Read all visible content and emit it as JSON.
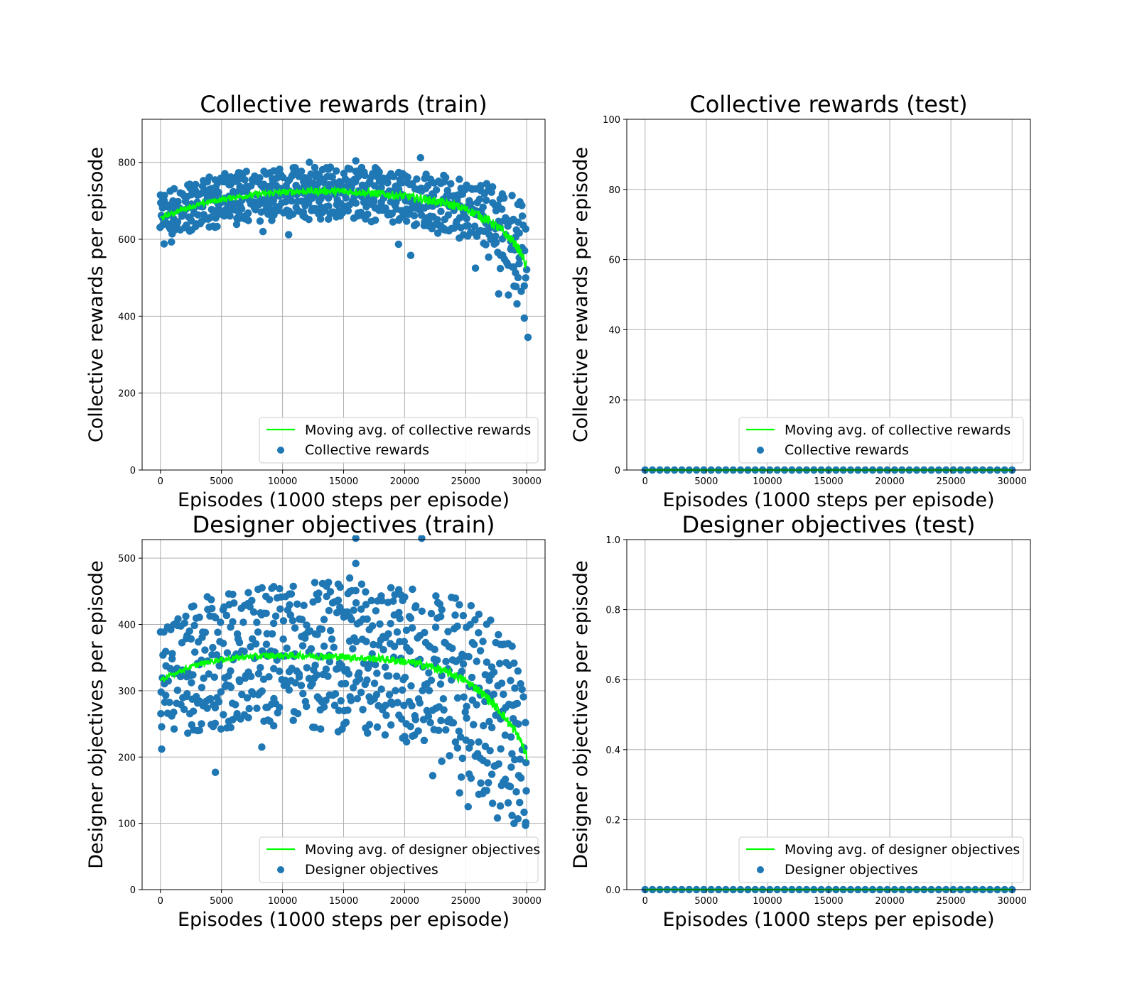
{
  "figure": {
    "background": "#ffffff"
  },
  "chart_data": [
    {
      "type": "scatter",
      "title": "Collective rewards (train)",
      "xlabel": "Episodes (1000 steps per episode)",
      "ylabel": "Collective rewards per episode",
      "xlim": [
        -1500,
        31500
      ],
      "ylim": [
        0,
        912
      ],
      "xticks": [
        0,
        5000,
        10000,
        15000,
        20000,
        25000,
        30000
      ],
      "yticks": [
        0,
        200,
        400,
        600,
        800
      ],
      "grid": true,
      "legend": {
        "placement": "lower-right",
        "entries": [
          "Moving avg. of collective rewards",
          "Collective rewards"
        ]
      },
      "series": [
        {
          "name": "Moving avg. of collective rewards",
          "kind": "line",
          "color": "#00ff00",
          "x": [
            0,
            1000,
            2000,
            3000,
            4000,
            5000,
            6000,
            7000,
            8000,
            9000,
            10000,
            11000,
            12000,
            13000,
            14000,
            15000,
            16000,
            17000,
            18000,
            19000,
            20000,
            21000,
            22000,
            23000,
            24000,
            25000,
            26000,
            27000,
            28000,
            29000,
            29500,
            30000
          ],
          "y": [
            655,
            668,
            680,
            689,
            697,
            703,
            709,
            713,
            717,
            720,
            722,
            724,
            725,
            725,
            725,
            724,
            723,
            721,
            718,
            715,
            712,
            707,
            702,
            695,
            688,
            678,
            664,
            646,
            622,
            590,
            565,
            530
          ]
        },
        {
          "name": "Collective rewards",
          "kind": "scatter",
          "color": "#1f77b4",
          "marker_size": 10.5,
          "x": [
            0,
            1000,
            2000,
            3000,
            4000,
            5000,
            6000,
            7000,
            8000,
            9000,
            10000,
            11000,
            12000,
            13000,
            14000,
            15000,
            16000,
            17000,
            18000,
            19000,
            20000,
            21000,
            22000,
            23000,
            24000,
            25000,
            26000,
            27000,
            28000,
            29000,
            29500,
            30000
          ],
          "y_low": [
            610,
            618,
            628,
            636,
            642,
            648,
            652,
            656,
            660,
            662,
            664,
            665,
            666,
            666,
            666,
            665,
            664,
            662,
            658,
            654,
            650,
            644,
            637,
            628,
            618,
            605,
            588,
            566,
            538,
            500,
            470,
            430
          ],
          "y_high": [
            705,
            720,
            732,
            742,
            750,
            756,
            762,
            766,
            770,
            773,
            775,
            777,
            778,
            778,
            778,
            777,
            776,
            774,
            772,
            770,
            767,
            764,
            760,
            755,
            750,
            744,
            738,
            728,
            714,
            690,
            672,
            650
          ],
          "outliers": [
            [
              300,
              588
            ],
            [
              900,
              593
            ],
            [
              4000,
              632
            ],
            [
              8400,
              620
            ],
            [
              10500,
              612
            ],
            [
              12200,
              800
            ],
            [
              16000,
              804
            ],
            [
              19500,
              587
            ],
            [
              20500,
              558
            ],
            [
              21300,
              812
            ],
            [
              25800,
              525
            ],
            [
              27700,
              458
            ],
            [
              28500,
              455
            ],
            [
              29200,
              432
            ],
            [
              29800,
              395
            ],
            [
              30100,
              345
            ]
          ]
        }
      ]
    },
    {
      "type": "scatter",
      "title": "Collective rewards (test)",
      "xlabel": "Episodes (1000 steps per episode)",
      "ylabel": "Collective rewards per episode",
      "xlim": [
        -1500,
        31500
      ],
      "ylim": [
        0,
        100
      ],
      "xticks": [
        0,
        5000,
        10000,
        15000,
        20000,
        25000,
        30000
      ],
      "yticks": [
        0,
        20,
        40,
        60,
        80,
        100
      ],
      "grid": true,
      "legend": {
        "placement": "lower-right",
        "entries": [
          "Moving avg. of collective rewards",
          "Collective rewards"
        ]
      },
      "series": [
        {
          "name": "Moving avg. of collective rewards",
          "kind": "line",
          "color": "#00ff00",
          "x": [
            0,
            30000
          ],
          "y": [
            0,
            0
          ]
        },
        {
          "name": "Collective rewards",
          "kind": "scatter",
          "color": "#1f77b4",
          "marker_size": 10.5,
          "x": [
            0,
            30000
          ],
          "y_low": [
            0,
            0
          ],
          "y_high": [
            0,
            0
          ],
          "outliers": []
        }
      ]
    },
    {
      "type": "scatter",
      "title": "Designer objectives (train)",
      "xlabel": "Episodes (1000 steps per episode)",
      "ylabel": "Designer objectives per episode",
      "xlim": [
        -1500,
        31500
      ],
      "ylim": [
        0,
        528
      ],
      "xticks": [
        0,
        5000,
        10000,
        15000,
        20000,
        25000,
        30000
      ],
      "yticks": [
        0,
        100,
        200,
        300,
        400,
        500
      ],
      "grid": true,
      "legend": {
        "placement": "lower-right",
        "entries": [
          "Moving avg. of designer objectives",
          "Designer objectives"
        ]
      },
      "series": [
        {
          "name": "Moving avg. of designer objectives",
          "kind": "line",
          "color": "#00ff00",
          "x": [
            0,
            1000,
            2000,
            3000,
            4000,
            5000,
            6000,
            7000,
            8000,
            9000,
            10000,
            11000,
            12000,
            13000,
            14000,
            15000,
            16000,
            17000,
            18000,
            19000,
            20000,
            21000,
            22000,
            23000,
            24000,
            25000,
            26000,
            27000,
            28000,
            29000,
            29500,
            30000
          ],
          "y": [
            315,
            325,
            333,
            339,
            344,
            347,
            349,
            351,
            352,
            353,
            353,
            353,
            353,
            352,
            352,
            351,
            350,
            349,
            348,
            346,
            344,
            341,
            337,
            331,
            324,
            315,
            302,
            285,
            265,
            240,
            225,
            200
          ]
        },
        {
          "name": "Designer objectives",
          "kind": "scatter",
          "color": "#1f77b4",
          "marker_size": 10.5,
          "x": [
            0,
            1000,
            2000,
            3000,
            4000,
            5000,
            6000,
            7000,
            8000,
            9000,
            10000,
            11000,
            12000,
            13000,
            14000,
            15000,
            16000,
            17000,
            18000,
            19000,
            20000,
            21000,
            22000,
            23000,
            24000,
            25000,
            26000,
            27000,
            28000,
            29000,
            29500,
            30000
          ],
          "y_low": [
            240,
            250,
            255,
            258,
            260,
            262,
            263,
            264,
            265,
            265,
            265,
            265,
            264,
            264,
            263,
            262,
            261,
            260,
            258,
            255,
            250,
            242,
            232,
            220,
            207,
            192,
            175,
            158,
            142,
            128,
            120,
            105
          ],
          "y_high": [
            390,
            400,
            410,
            418,
            425,
            430,
            434,
            437,
            439,
            441,
            442,
            443,
            443,
            443,
            443,
            443,
            442,
            441,
            440,
            438,
            436,
            433,
            429,
            424,
            418,
            410,
            400,
            385,
            365,
            340,
            320,
            300
          ],
          "outliers": [
            [
              100,
              212
            ],
            [
              4500,
              177
            ],
            [
              8300,
              215
            ],
            [
              15500,
              470
            ],
            [
              16000,
              492
            ],
            [
              16000,
              530
            ],
            [
              21400,
              530
            ],
            [
              22300,
              172
            ],
            [
              24500,
              146
            ],
            [
              25200,
              125
            ],
            [
              27600,
              108
            ],
            [
              29900,
              97
            ]
          ]
        }
      ]
    },
    {
      "type": "scatter",
      "title": "Designer objectives (test)",
      "xlabel": "Episodes (1000 steps per episode)",
      "ylabel": "Designer objectives per episode",
      "xlim": [
        -1500,
        31500
      ],
      "ylim": [
        0,
        1.0
      ],
      "xticks": [
        0,
        5000,
        10000,
        15000,
        20000,
        25000,
        30000
      ],
      "yticks": [
        "0.0",
        "0.2",
        "0.4",
        "0.6",
        "0.8",
        "1.0"
      ],
      "grid": true,
      "legend": {
        "placement": "lower-right",
        "entries": [
          "Moving avg. of designer objectives",
          "Designer objectives"
        ]
      },
      "series": [
        {
          "name": "Moving avg. of designer objectives",
          "kind": "line",
          "color": "#00ff00",
          "x": [
            0,
            30000
          ],
          "y": [
            0,
            0
          ]
        },
        {
          "name": "Designer objectives",
          "kind": "scatter",
          "color": "#1f77b4",
          "marker_size": 10.5,
          "x": [
            0,
            30000
          ],
          "y_low": [
            0,
            0
          ],
          "y_high": [
            0,
            0
          ],
          "outliers": []
        }
      ]
    }
  ]
}
